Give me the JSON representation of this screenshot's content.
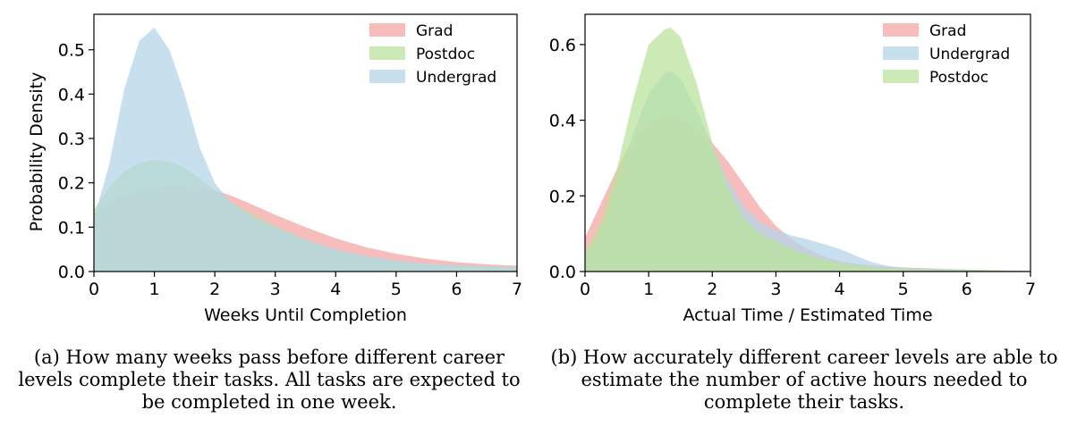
{
  "captions": {
    "a": "(a) How many weeks pass before different career levels complete their tasks. All tasks are expected to be completed in one week.",
    "b": "(b) How accurately different career levels are able to estimate the number of active hours needed to complete their tasks."
  },
  "chart_data": [
    {
      "type": "area",
      "panel": "a",
      "title": "",
      "xlabel": "Weeks Until Completion",
      "ylabel": "Probability Density",
      "xlim": [
        0,
        7
      ],
      "ylim": [
        0,
        0.58
      ],
      "xticks": [
        0,
        1,
        2,
        3,
        4,
        5,
        6,
        7
      ],
      "yticks": [
        0.0,
        0.1,
        0.2,
        0.3,
        0.4,
        0.5
      ],
      "ytick_labels": [
        "0.0",
        "0.1",
        "0.2",
        "0.3",
        "0.4",
        "0.5"
      ],
      "grid": false,
      "legend": "top-right",
      "x": [
        0,
        0.25,
        0.5,
        0.75,
        1,
        1.25,
        1.5,
        1.75,
        2,
        2.25,
        2.5,
        2.75,
        3,
        3.5,
        4,
        4.5,
        5,
        5.5,
        6,
        6.5,
        7
      ],
      "series": [
        {
          "name": "Grad",
          "color": "#f4a6a6",
          "values": [
            0.13,
            0.155,
            0.172,
            0.183,
            0.19,
            0.193,
            0.193,
            0.19,
            0.183,
            0.172,
            0.158,
            0.143,
            0.128,
            0.1,
            0.075,
            0.055,
            0.04,
            0.029,
            0.021,
            0.016,
            0.013
          ]
        },
        {
          "name": "Postdoc",
          "color": "#b9e39c",
          "values": [
            0.14,
            0.19,
            0.225,
            0.245,
            0.252,
            0.248,
            0.234,
            0.21,
            0.183,
            0.158,
            0.138,
            0.12,
            0.102,
            0.072,
            0.048,
            0.032,
            0.022,
            0.016,
            0.013,
            0.011,
            0.01
          ]
        },
        {
          "name": "Undergrad",
          "color": "#b5d5e8",
          "values": [
            0.12,
            0.24,
            0.41,
            0.52,
            0.55,
            0.5,
            0.4,
            0.28,
            0.2,
            0.158,
            0.135,
            0.115,
            0.1,
            0.072,
            0.05,
            0.035,
            0.025,
            0.018,
            0.014,
            0.012,
            0.01
          ]
        }
      ]
    },
    {
      "type": "area",
      "panel": "b",
      "title": "",
      "xlabel": "Actual Time / Estimated Time",
      "ylabel": "",
      "xlim": [
        0,
        7
      ],
      "ylim": [
        0,
        0.68
      ],
      "xticks": [
        0,
        1,
        2,
        3,
        4,
        5,
        6,
        7
      ],
      "yticks": [
        0.0,
        0.2,
        0.4,
        0.6
      ],
      "ytick_labels": [
        "0.0",
        "0.2",
        "0.4",
        "0.6"
      ],
      "grid": false,
      "legend": "top-right",
      "x": [
        0,
        0.25,
        0.5,
        0.75,
        1,
        1.25,
        1.35,
        1.5,
        1.75,
        2,
        2.25,
        2.5,
        2.75,
        3,
        3.25,
        3.5,
        3.75,
        4,
        4.25,
        4.5,
        4.75,
        5,
        5.5,
        6,
        6.5,
        7
      ],
      "series": [
        {
          "name": "Grad",
          "color": "#f4a6a6",
          "values": [
            0.09,
            0.18,
            0.27,
            0.35,
            0.395,
            0.41,
            0.41,
            0.405,
            0.38,
            0.34,
            0.29,
            0.23,
            0.17,
            0.12,
            0.085,
            0.06,
            0.04,
            0.028,
            0.02,
            0.016,
            0.013,
            0.011,
            0.008,
            0.005,
            0.003,
            0.001
          ]
        },
        {
          "name": "Undergrad",
          "color": "#b5d5e8",
          "values": [
            0.03,
            0.1,
            0.22,
            0.36,
            0.47,
            0.525,
            0.53,
            0.51,
            0.43,
            0.33,
            0.24,
            0.17,
            0.13,
            0.11,
            0.095,
            0.085,
            0.073,
            0.06,
            0.042,
            0.025,
            0.015,
            0.01,
            0.007,
            0.005,
            0.003,
            0.001
          ]
        },
        {
          "name": "Postdoc",
          "color": "#b9e39c",
          "values": [
            0.05,
            0.13,
            0.27,
            0.45,
            0.6,
            0.64,
            0.645,
            0.62,
            0.5,
            0.34,
            0.22,
            0.14,
            0.1,
            0.08,
            0.06,
            0.045,
            0.032,
            0.022,
            0.016,
            0.012,
            0.009,
            0.007,
            0.005,
            0.004,
            0.003,
            0.001
          ]
        }
      ]
    }
  ]
}
